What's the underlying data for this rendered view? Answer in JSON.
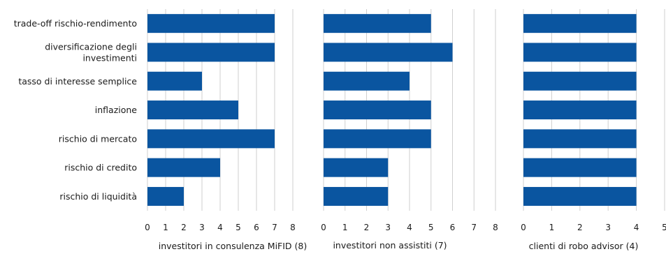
{
  "chart_data": {
    "type": "bar",
    "orientation": "horizontal",
    "categories": [
      "trade-off rischio-rendimento",
      "diversificazione degli investimenti",
      "tasso di interesse semplice",
      "inflazione",
      "rischio di mercato",
      "rischio di credito",
      "rischio di liquidità"
    ],
    "category_lines": [
      [
        "trade-off rischio-rendimento"
      ],
      [
        "diversificazione degli",
        "investimenti"
      ],
      [
        "tasso di interesse semplice"
      ],
      [
        "inflazione"
      ],
      [
        "rischio di mercato"
      ],
      [
        "rischio di credito"
      ],
      [
        "rischio di liquidità"
      ]
    ],
    "bar_color": "#0a55a0",
    "grid_color": "#cfcfcf",
    "grid": true,
    "panels": [
      {
        "title": "investitori in consulenza MiFID (8)",
        "values": [
          7,
          7,
          3,
          5,
          7,
          4,
          2
        ],
        "xlim": [
          0,
          8
        ],
        "ticks": [
          0,
          1,
          2,
          3,
          4,
          5,
          6,
          7,
          8
        ]
      },
      {
        "title": "investitori non assistiti (7)",
        "values": [
          5,
          6,
          4,
          5,
          5,
          3,
          3
        ],
        "xlim": [
          0,
          8
        ],
        "ticks": [
          0,
          1,
          2,
          3,
          4,
          5,
          6,
          7,
          8
        ]
      },
      {
        "title": "clienti di robo advisor (4)",
        "values": [
          4,
          4,
          4,
          4,
          4,
          4,
          4
        ],
        "xlim": [
          0,
          5
        ],
        "ticks": [
          0,
          1,
          2,
          3,
          4,
          5
        ]
      }
    ]
  }
}
